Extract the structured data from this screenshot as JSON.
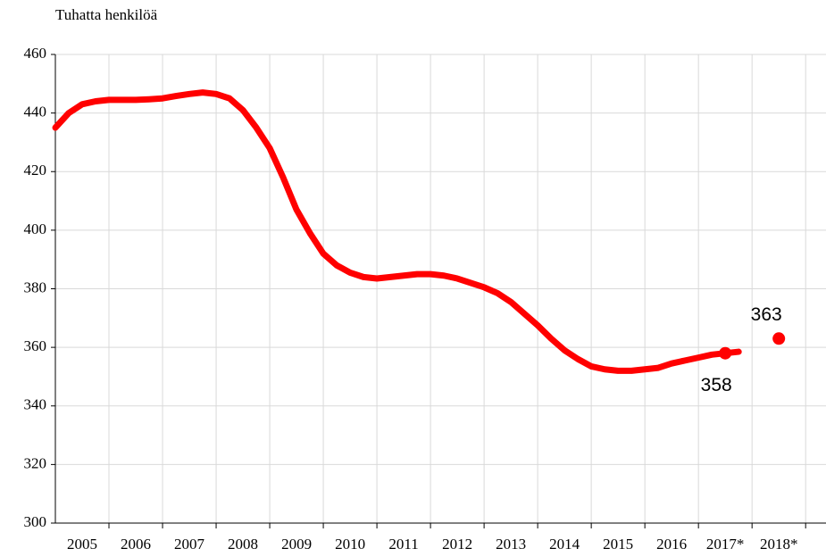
{
  "chart_data": {
    "type": "line",
    "title": "Tuhatta henkilöä",
    "categories": [
      "2005",
      "2006",
      "2007",
      "2008",
      "2009",
      "2010",
      "2011",
      "2012",
      "2013",
      "2014",
      "2015",
      "2016",
      "2017*",
      "2018*"
    ],
    "xlim": [
      2005,
      2019.38
    ],
    "ylim": [
      300,
      460
    ],
    "yticks": [
      300,
      320,
      340,
      360,
      380,
      400,
      420,
      440,
      460
    ],
    "grid": true,
    "series": [
      {
        "type": "line",
        "color": "#ff0000",
        "x": [
          2005.0,
          2005.25,
          2005.5,
          2005.75,
          2006.0,
          2006.25,
          2006.5,
          2006.75,
          2007.0,
          2007.25,
          2007.5,
          2007.75,
          2008.0,
          2008.25,
          2008.5,
          2008.75,
          2009.0,
          2009.25,
          2009.5,
          2009.75,
          2010.0,
          2010.25,
          2010.5,
          2010.75,
          2011.0,
          2011.25,
          2011.5,
          2011.75,
          2012.0,
          2012.25,
          2012.5,
          2012.75,
          2013.0,
          2013.25,
          2013.5,
          2013.75,
          2014.0,
          2014.25,
          2014.5,
          2014.75,
          2015.0,
          2015.25,
          2015.5,
          2015.75,
          2016.0,
          2016.25,
          2016.5,
          2016.75,
          2017.0,
          2017.25,
          2017.5,
          2017.75
        ],
        "values": [
          435,
          440,
          443,
          444,
          444.5,
          444.5,
          444.5,
          444.7,
          445,
          445.8,
          446.5,
          447,
          446.5,
          445,
          441,
          435,
          428,
          418,
          407,
          399,
          392,
          388,
          385.5,
          384,
          383.5,
          384,
          384.5,
          385,
          385,
          384.5,
          383.5,
          382,
          380.5,
          378.5,
          375.5,
          371.5,
          367.5,
          363,
          359,
          356,
          353.5,
          352.5,
          352,
          352,
          352.5,
          353,
          354.5,
          355.5,
          356.5,
          357.5,
          358,
          358.5
        ]
      },
      {
        "type": "scatter",
        "color": "#ff0000",
        "x": [
          2017.5,
          2018.5
        ],
        "values": [
          358,
          363
        ]
      }
    ]
  }
}
